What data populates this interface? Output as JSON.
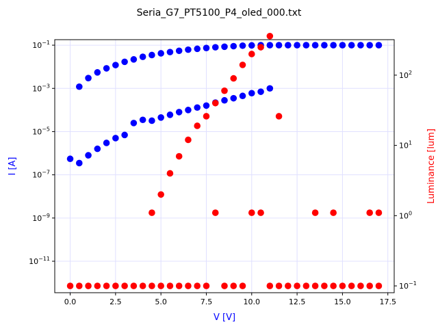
{
  "chart_data": {
    "type": "scatter",
    "title": "Seria_G7_PT5100_P4_oled_000.txt",
    "xlabel": "V [V]",
    "ylabel_left": "I [A]",
    "ylabel_right": "Luminance [lum]",
    "xlim": [
      -0.85,
      17.85
    ],
    "ylim_left": [
      3.5e-13,
      0.18
    ],
    "ylim_right": [
      0.08,
      320
    ],
    "yscale_left": "log",
    "yscale_right": "log",
    "grid": true,
    "legend": "none",
    "x_ticks": [
      {
        "v": 0,
        "label": "0.0"
      },
      {
        "v": 2.5,
        "label": "2.5"
      },
      {
        "v": 5,
        "label": "5.0"
      },
      {
        "v": 7.5,
        "label": "7.5"
      },
      {
        "v": 10,
        "label": "10.0"
      },
      {
        "v": 12.5,
        "label": "12.5"
      },
      {
        "v": 15,
        "label": "15.0"
      },
      {
        "v": 17.5,
        "label": "17.5"
      }
    ],
    "y_left_ticks": [
      {
        "v": 1e-11,
        "base": "10",
        "exp": "−11"
      },
      {
        "v": 1e-09,
        "base": "10",
        "exp": "−9"
      },
      {
        "v": 1e-07,
        "base": "10",
        "exp": "−7"
      },
      {
        "v": 1e-05,
        "base": "10",
        "exp": "−5"
      },
      {
        "v": 0.001,
        "base": "10",
        "exp": "−3"
      },
      {
        "v": 0.1,
        "base": "10",
        "exp": "−1"
      }
    ],
    "y_right_ticks": [
      {
        "v": 0.1,
        "base": "10",
        "exp": "−1"
      },
      {
        "v": 1,
        "base": "10",
        "exp": "0"
      },
      {
        "v": 10,
        "base": "10",
        "exp": "1"
      },
      {
        "v": 100,
        "base": "10",
        "exp": "2"
      }
    ],
    "colors": {
      "current": "#0000ff",
      "luminance": "#ff0000",
      "grid": "#e0e0ff"
    },
    "series": [
      {
        "axis": "left",
        "color": "#0000ff",
        "points": [
          [
            0,
            5.5e-07
          ],
          [
            0.5,
            3.5e-07
          ],
          [
            1,
            8e-07
          ],
          [
            1.5,
            1.6e-06
          ],
          [
            2,
            3e-06
          ],
          [
            2.5,
            5e-06
          ],
          [
            3,
            7e-06
          ],
          [
            3.5,
            2.5e-05
          ],
          [
            4,
            3.5e-05
          ],
          [
            4.5,
            3.2e-05
          ],
          [
            5,
            4.5e-05
          ],
          [
            5.5,
            6e-05
          ],
          [
            6,
            8e-05
          ],
          [
            6.5,
            0.0001
          ],
          [
            7,
            0.00013
          ],
          [
            7.5,
            0.00016
          ],
          [
            8,
            0.00022
          ],
          [
            8.5,
            0.00028
          ],
          [
            9,
            0.00035
          ],
          [
            9.5,
            0.00045
          ],
          [
            10,
            0.0006
          ],
          [
            10.5,
            0.0007
          ],
          [
            11,
            0.001
          ],
          [
            0.5,
            0.0012
          ],
          [
            1,
            0.003
          ],
          [
            1.5,
            0.0055
          ],
          [
            2,
            0.0085
          ],
          [
            2.5,
            0.012
          ],
          [
            3,
            0.017
          ],
          [
            3.5,
            0.022
          ],
          [
            4,
            0.029
          ],
          [
            4.5,
            0.035
          ],
          [
            5,
            0.042
          ],
          [
            5.5,
            0.048
          ],
          [
            6,
            0.055
          ],
          [
            6.5,
            0.062
          ],
          [
            7,
            0.068
          ],
          [
            7.5,
            0.074
          ],
          [
            8,
            0.08
          ],
          [
            8.5,
            0.085
          ],
          [
            9,
            0.09
          ],
          [
            9.5,
            0.095
          ],
          [
            10,
            0.098
          ],
          [
            10.5,
            0.1
          ],
          [
            11,
            0.1
          ],
          [
            11.5,
            0.1
          ],
          [
            12,
            0.1
          ],
          [
            12.5,
            0.1
          ],
          [
            13,
            0.1
          ],
          [
            13.5,
            0.1
          ],
          [
            14,
            0.1
          ],
          [
            14.5,
            0.1
          ],
          [
            15,
            0.1
          ],
          [
            15.5,
            0.1
          ],
          [
            16,
            0.1
          ],
          [
            16.5,
            0.1
          ],
          [
            17,
            0.1
          ]
        ]
      },
      {
        "axis": "right",
        "color": "#ff0000",
        "points": [
          [
            0,
            0.1
          ],
          [
            0.5,
            0.1
          ],
          [
            1,
            0.1
          ],
          [
            1.5,
            0.1
          ],
          [
            2,
            0.1
          ],
          [
            2.5,
            0.1
          ],
          [
            3,
            0.1
          ],
          [
            3.5,
            0.1
          ],
          [
            4,
            0.1
          ],
          [
            4.5,
            0.1
          ],
          [
            5,
            0.1
          ],
          [
            5.5,
            0.1
          ],
          [
            6,
            0.1
          ],
          [
            6.5,
            0.1
          ],
          [
            7,
            0.1
          ],
          [
            7.5,
            0.1
          ],
          [
            8.5,
            0.1
          ],
          [
            9,
            0.1
          ],
          [
            9.5,
            0.1
          ],
          [
            11,
            0.1
          ],
          [
            11.5,
            0.1
          ],
          [
            12,
            0.1
          ],
          [
            12.5,
            0.1
          ],
          [
            13,
            0.1
          ],
          [
            13.5,
            0.1
          ],
          [
            14,
            0.1
          ],
          [
            14.5,
            0.1
          ],
          [
            15,
            0.1
          ],
          [
            15.5,
            0.1
          ],
          [
            16,
            0.1
          ],
          [
            16.5,
            0.1
          ],
          [
            17,
            0.1
          ],
          [
            4.5,
            1.1
          ],
          [
            5,
            2
          ],
          [
            5.5,
            4
          ],
          [
            6,
            7
          ],
          [
            6.5,
            12
          ],
          [
            7,
            19
          ],
          [
            7.5,
            26
          ],
          [
            8,
            1.1
          ],
          [
            8,
            40
          ],
          [
            8.5,
            60
          ],
          [
            9,
            90
          ],
          [
            9.5,
            140
          ],
          [
            10,
            1.1
          ],
          [
            10,
            200
          ],
          [
            10.5,
            1.1
          ],
          [
            10.5,
            250
          ],
          [
            11,
            360
          ],
          [
            11.5,
            26
          ],
          [
            13.5,
            1.1
          ],
          [
            14.5,
            1.1
          ],
          [
            16.5,
            1.1
          ],
          [
            17,
            1.1
          ]
        ]
      }
    ]
  }
}
